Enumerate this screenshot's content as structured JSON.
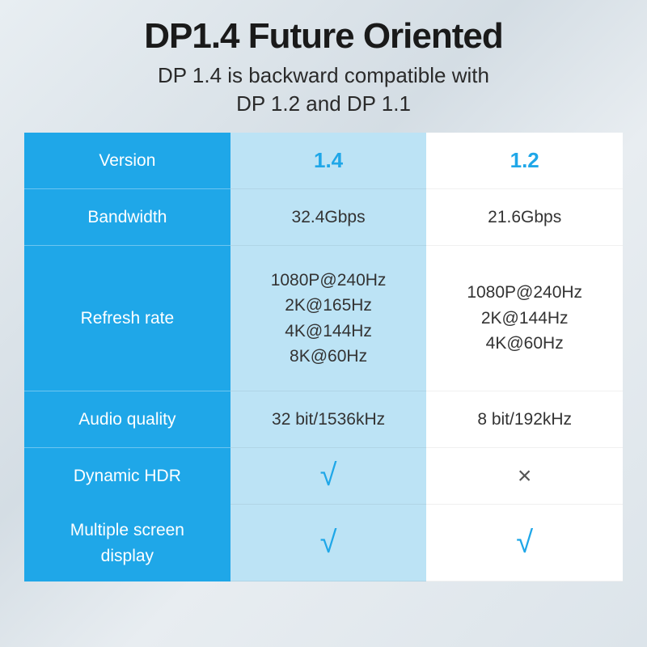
{
  "header": {
    "title": "DP1.4 Future Oriented",
    "subtitle_line1": "DP 1.4 is backward compatible with",
    "subtitle_line2": "DP 1.2 and DP 1.1"
  },
  "table": {
    "colors": {
      "label_bg": "#1fa7e8",
      "label_text": "#ffffff",
      "col1_bg": "#bce3f5",
      "col2_bg": "#ffffff",
      "value_text": "#333333",
      "accent": "#1fa7e8",
      "cross": "#555555"
    },
    "rows": {
      "version": {
        "label": "Version",
        "col1": "1.4",
        "col2": "1.2"
      },
      "bandwidth": {
        "label": "Bandwidth",
        "col1": "32.4Gbps",
        "col2": "21.6Gbps"
      },
      "refresh": {
        "label": "Refresh rate",
        "col1": "1080P@240Hz\n2K@165Hz\n4K@144Hz\n8K@60Hz",
        "col2": "1080P@240Hz\n2K@144Hz\n4K@60Hz"
      },
      "audio": {
        "label": "Audio quality",
        "col1": "32 bit/1536kHz",
        "col2": "8 bit/192kHz"
      },
      "hdr": {
        "label": "Dynamic HDR",
        "col1": "√",
        "col2": "×"
      },
      "multiscreen": {
        "label": "Multiple screen\ndisplay",
        "col1": "√",
        "col2": "√"
      }
    }
  }
}
